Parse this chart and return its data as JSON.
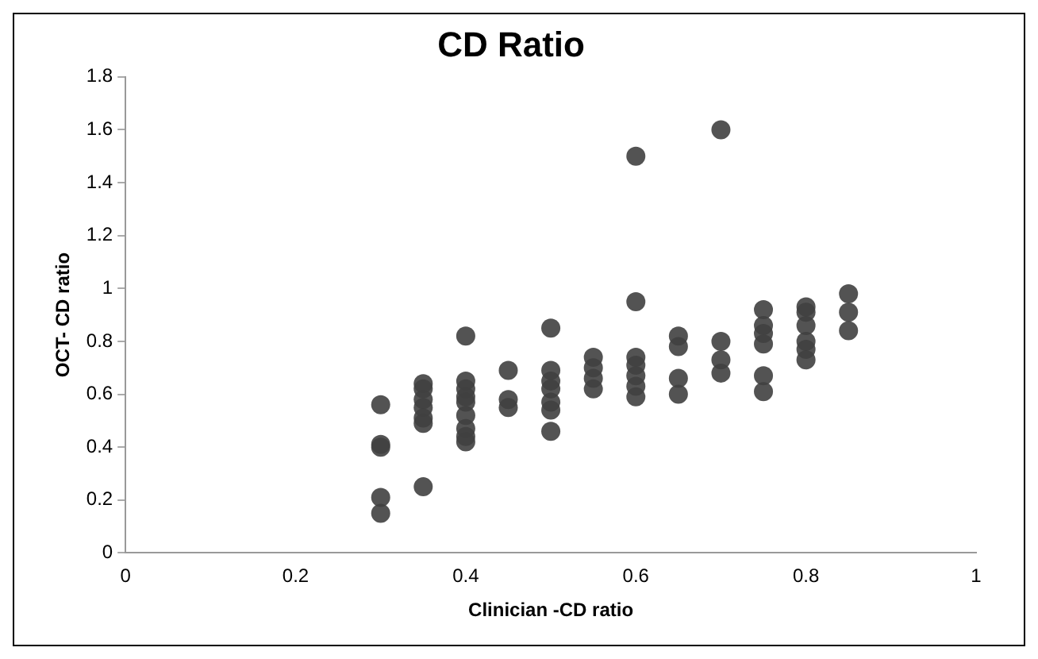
{
  "chart_data": {
    "type": "scatter",
    "title": "CD Ratio",
    "xlabel": "Clinician -CD ratio",
    "ylabel": "OCT- CD ratio",
    "x": [
      0.3,
      0.3,
      0.3,
      0.3,
      0.3,
      0.35,
      0.35,
      0.35,
      0.35,
      0.35,
      0.35,
      0.35,
      0.4,
      0.4,
      0.4,
      0.4,
      0.4,
      0.4,
      0.4,
      0.4,
      0.4,
      0.45,
      0.45,
      0.45,
      0.5,
      0.5,
      0.5,
      0.5,
      0.5,
      0.5,
      0.5,
      0.55,
      0.55,
      0.55,
      0.55,
      0.6,
      0.6,
      0.6,
      0.6,
      0.6,
      0.6,
      0.6,
      0.65,
      0.65,
      0.65,
      0.65,
      0.7,
      0.7,
      0.7,
      0.7,
      0.75,
      0.75,
      0.75,
      0.75,
      0.75,
      0.75,
      0.8,
      0.8,
      0.8,
      0.8,
      0.8,
      0.8,
      0.85,
      0.85,
      0.85
    ],
    "values": [
      0.56,
      0.41,
      0.4,
      0.21,
      0.15,
      0.64,
      0.62,
      0.58,
      0.55,
      0.51,
      0.49,
      0.25,
      0.82,
      0.65,
      0.62,
      0.59,
      0.57,
      0.52,
      0.47,
      0.44,
      0.42,
      0.69,
      0.58,
      0.55,
      0.85,
      0.69,
      0.65,
      0.62,
      0.57,
      0.54,
      0.46,
      0.74,
      0.7,
      0.66,
      0.62,
      1.5,
      0.95,
      0.74,
      0.71,
      0.67,
      0.63,
      0.59,
      0.82,
      0.78,
      0.66,
      0.6,
      1.6,
      0.8,
      0.73,
      0.68,
      0.92,
      0.86,
      0.83,
      0.79,
      0.67,
      0.61,
      0.93,
      0.91,
      0.86,
      0.8,
      0.77,
      0.73,
      0.98,
      0.91,
      0.84
    ],
    "color": "#404040",
    "marker": "circle",
    "xlim": [
      0,
      1
    ],
    "xticks": [
      0,
      0.2,
      0.4,
      0.6,
      0.8,
      1
    ],
    "ylim": [
      0,
      1.8
    ],
    "yticks": [
      0,
      0.2,
      0.4,
      0.6,
      0.8,
      1,
      1.2,
      1.4,
      1.6,
      1.8
    ],
    "grid": false,
    "legend": false
  }
}
